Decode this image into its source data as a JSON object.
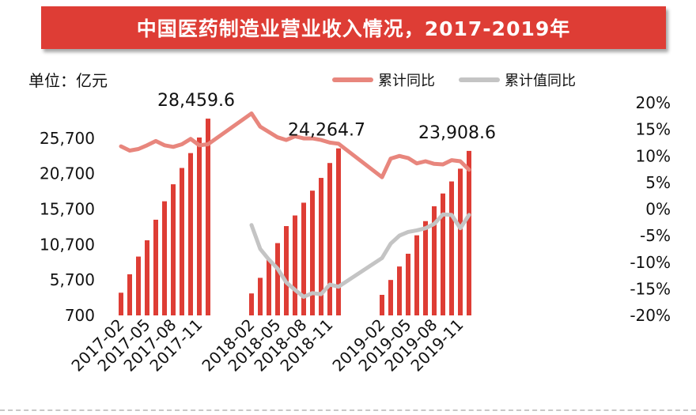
{
  "banner": {
    "title": "中国医药制造业营业收入情况，2017-2019年"
  },
  "unit_label": "单位：亿元",
  "colors": {
    "bar": "#de3d35",
    "cum_yoy": "#e8867d",
    "cum_value_yoy": "#c4c4c4"
  },
  "chart_data": {
    "type": "bar",
    "title": "中国医药制造业营业收入情况，2017-2019年",
    "xlabel": "",
    "ylabel": "单位：亿元",
    "ylim": [
      700,
      30700
    ],
    "y2lim": [
      -20,
      20
    ],
    "y_ticks": [
      "25,700",
      "20,700",
      "15,700",
      "10,700",
      "5,700",
      "700"
    ],
    "y_tick_values": [
      25700,
      20700,
      15700,
      10700,
      5700,
      700
    ],
    "y2_ticks": [
      "20%",
      "15%",
      "10%",
      "5%",
      "0%",
      "-5%",
      "-10%",
      "-15%",
      "-20%"
    ],
    "y2_tick_values": [
      20,
      15,
      10,
      5,
      0,
      -5,
      -10,
      -15,
      -20
    ],
    "x_tick_labels": [
      "2017-02",
      "2017-05",
      "2017-08",
      "2017-11",
      "2018-02",
      "2018-05",
      "2018-08",
      "2018-11",
      "2019-02",
      "2019-05",
      "2019-08",
      "2019-11"
    ],
    "categories": [
      "2017-02",
      "2017-03",
      "2017-04",
      "2017-05",
      "2017-06",
      "2017-07",
      "2017-08",
      "2017-09",
      "2017-10",
      "2017-11",
      "2017-12",
      "2018-02",
      "2018-03",
      "2018-04",
      "2018-05",
      "2018-06",
      "2018-07",
      "2018-08",
      "2018-09",
      "2018-10",
      "2018-11",
      "2018-12",
      "2019-02",
      "2019-03",
      "2019-04",
      "2019-05",
      "2019-06",
      "2019-07",
      "2019-08",
      "2019-09",
      "2019-10",
      "2019-11",
      "2019-12"
    ],
    "legend_position": "top-right",
    "series": [
      {
        "name": "营业收入",
        "axis": "left",
        "kind": "bar",
        "values": [
          3900,
          6500,
          9000,
          11300,
          14200,
          16800,
          19200,
          21500,
          23600,
          25800,
          28459.6,
          3800,
          6000,
          8600,
          10900,
          13300,
          14800,
          16600,
          18300,
          20100,
          22200,
          24264.7,
          3600,
          5700,
          7600,
          9400,
          12000,
          14000,
          16100,
          17900,
          19600,
          21400,
          23908.6
        ]
      },
      {
        "name": "累计同比",
        "axis": "right",
        "kind": "line",
        "values": [
          11.8,
          11,
          11.3,
          12,
          12.8,
          12,
          11.7,
          12.2,
          13.2,
          12,
          12.2,
          18,
          15.5,
          14.5,
          13.5,
          13,
          13.7,
          13.3,
          13.3,
          13,
          12.5,
          12.3,
          6,
          9.5,
          10,
          9.6,
          8.6,
          9,
          8.5,
          8.4,
          9.2,
          9,
          7.4
        ]
      },
      {
        "name": "累计值同比",
        "axis": "right",
        "kind": "line",
        "values": [
          null,
          null,
          null,
          null,
          null,
          null,
          null,
          null,
          null,
          null,
          null,
          -3,
          -7.5,
          -9.5,
          -11.2,
          -13.8,
          -15.2,
          -16.5,
          -15.8,
          -16,
          -14.2,
          -14.6,
          -9.2,
          -6.5,
          -5,
          -4.3,
          -4,
          -3.6,
          -2.8,
          -1,
          -1.1,
          -3.6,
          -1.1
        ]
      }
    ],
    "data_labels": [
      {
        "category": "2017-12",
        "text": "28,459.6"
      },
      {
        "category": "2018-12",
        "text": "24,264.7"
      },
      {
        "category": "2019-12",
        "text": "23,908.6"
      }
    ]
  }
}
